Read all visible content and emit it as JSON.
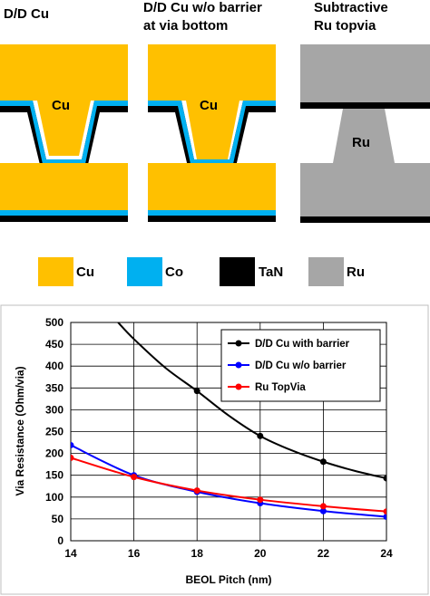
{
  "diagram": {
    "columns": [
      {
        "title_lines": [
          "D/D Cu"
        ],
        "via_label": "Cu"
      },
      {
        "title_lines": [
          "D/D Cu w/o barrier",
          "at via bottom"
        ],
        "via_label": "Cu"
      },
      {
        "title_lines": [
          "Subtractive",
          "Ru topvia"
        ],
        "via_label": "Ru"
      }
    ],
    "legend": [
      {
        "label": "Cu",
        "color": "#FFC000"
      },
      {
        "label": "Co",
        "color": "#00B0F0"
      },
      {
        "label": "TaN",
        "color": "#000000"
      },
      {
        "label": "Ru",
        "color": "#A6A6A6"
      }
    ]
  },
  "chart_data": {
    "type": "line",
    "xlabel": "BEOL Pitch (nm)",
    "ylabel": "Via Resistance (Ohm/via)",
    "xlim": [
      14,
      24
    ],
    "ylim": [
      0,
      500
    ],
    "xticks": [
      14,
      16,
      18,
      20,
      22,
      24
    ],
    "yticks": [
      0,
      50,
      100,
      150,
      200,
      250,
      300,
      350,
      400,
      450,
      500
    ],
    "grid": true,
    "legend_position": "top-right",
    "series": [
      {
        "name": "D/D Cu with barrier",
        "color": "#000000",
        "x": [
          15.5,
          16,
          17,
          18,
          19,
          20,
          21,
          22,
          23,
          24
        ],
        "y": [
          500,
          462,
          396,
          343,
          287,
          240,
          207,
          181,
          160,
          143
        ],
        "markers_x": [
          18,
          20,
          22,
          24
        ],
        "markers_y": [
          343,
          240,
          181,
          143
        ]
      },
      {
        "name": "D/D Cu w/o barrier",
        "color": "#0000FF",
        "x": [
          14,
          16,
          18,
          20,
          22,
          24
        ],
        "y": [
          219,
          150,
          112,
          86,
          68,
          55
        ]
      },
      {
        "name": "Ru TopVia",
        "color": "#FF0000",
        "x": [
          14,
          16,
          18,
          20,
          22,
          24
        ],
        "y": [
          190,
          146,
          115,
          94,
          79,
          67
        ]
      }
    ]
  }
}
